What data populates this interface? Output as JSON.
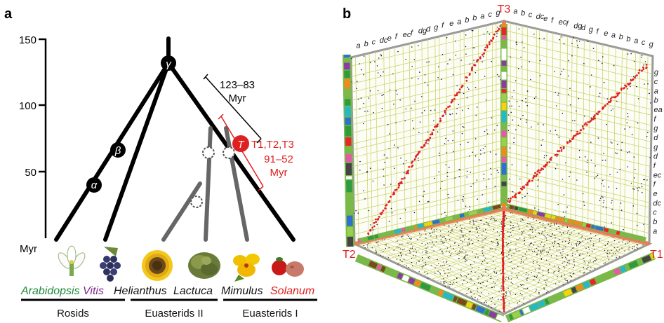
{
  "panel_a": {
    "label": "a",
    "axis": {
      "unit": "Myr",
      "ticks": [
        "150",
        "100",
        "50"
      ]
    },
    "events": [
      {
        "symbol": "γ"
      },
      {
        "symbol": "β"
      },
      {
        "symbol": "α"
      },
      {
        "symbol": "T",
        "label": "T1,T2,T3",
        "range": "91–52",
        "unit": "Myr"
      }
    ],
    "gamma_range": {
      "range": "123–83",
      "unit": "Myr"
    },
    "taxa": [
      {
        "name": "Arabidopsis",
        "color": "#1e8a3a"
      },
      {
        "name": "Vitis",
        "color": "#7b2a8a"
      },
      {
        "name": "Helianthus",
        "color": "#111111"
      },
      {
        "name": "Lactuca",
        "color": "#111111"
      },
      {
        "name": "Mimulus",
        "color": "#111111"
      },
      {
        "name": "Solanum",
        "color": "#e02020"
      }
    ],
    "clades": [
      "Rosids",
      "Euasterids II",
      "Euasterids I"
    ]
  },
  "panel_b": {
    "label": "b",
    "corner_labels": [
      "T3",
      "T2",
      "T1"
    ],
    "left_wall_top_labels": [
      "a",
      "b",
      "c",
      "dc",
      "e",
      "f",
      "ec",
      "f",
      "dg",
      "d",
      "g",
      "f",
      "e",
      "a",
      "b",
      "b",
      "a",
      "c",
      "g"
    ],
    "right_wall_top_labels": [
      "a",
      "b",
      "c",
      "dc",
      "e",
      "f",
      "ec",
      "f",
      "dg",
      "d",
      "g",
      "f",
      "e",
      "a",
      "b",
      "b",
      "a",
      "c",
      "g"
    ],
    "right_side_labels": [
      "g",
      "c",
      "a",
      "b",
      "ea",
      "f",
      "g",
      "d",
      "g",
      "d",
      "f",
      "ec",
      "f",
      "e",
      "dc",
      "c",
      "b",
      "a"
    ],
    "colors": {
      "dots_red": "#e02020",
      "dots_grey": "#1a1a6a",
      "grid": "#c8d060",
      "frame": "#9a9a9a",
      "highlight": "#ff3322"
    }
  }
}
